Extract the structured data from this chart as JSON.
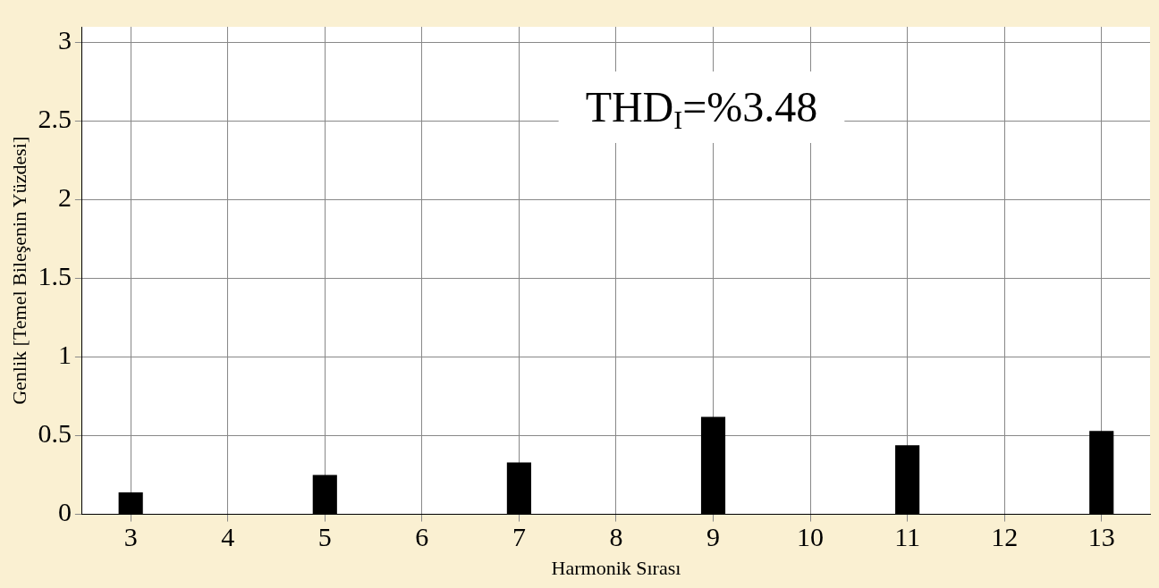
{
  "chart_data": {
    "type": "bar",
    "xlabel": "Harmonik Sırası",
    "ylabel": "Genlik [Temel Bileşenin Yüzdesi]",
    "categories": [
      "3",
      "4",
      "5",
      "6",
      "7",
      "8",
      "9",
      "10",
      "11",
      "12",
      "13"
    ],
    "values": [
      0.14,
      0,
      0.25,
      0,
      0.33,
      0,
      0.62,
      0,
      0.44,
      0,
      0.53
    ],
    "color": "#000000",
    "ylim": [
      0,
      3.1
    ],
    "yticks": [
      0,
      0.5,
      1,
      1.5,
      2,
      2.5,
      3
    ],
    "grid": true,
    "annotations": [
      "THD$_{I}$=%3.48"
    ]
  }
}
